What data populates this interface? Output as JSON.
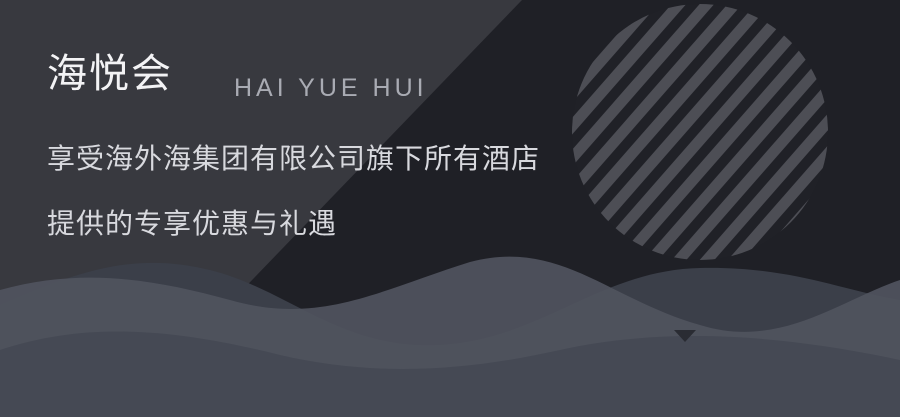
{
  "banner": {
    "brand_name": "海悦会",
    "brand_name_en": "HAI YUE HUI",
    "tagline_line_1": "享受海外海集团有限公司旗下所有酒店",
    "tagline_line_2": "提供的专享优惠与礼遇"
  },
  "colors": {
    "background_dark": "#1f2026",
    "panel_gray": "#38393f",
    "stripe": "#4d4e55",
    "wave_light": "#50545e",
    "wave_mid": "#454954",
    "wave_dark": "#3b3f49",
    "text_primary": "#f3f3f5",
    "text_muted": "#a9abb3"
  },
  "icons": {
    "decoration": "striped-circle",
    "scroll_hint": "triangle-down-icon"
  }
}
